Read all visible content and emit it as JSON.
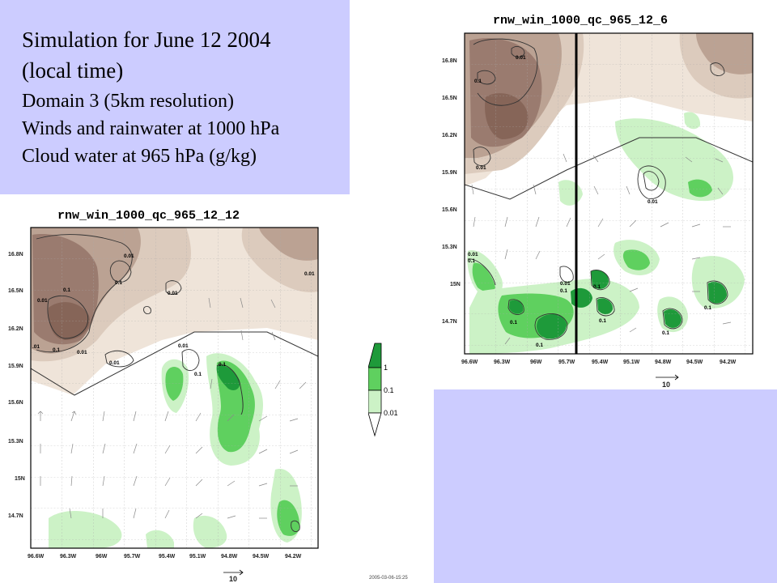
{
  "slide": {
    "title_line1": "Simulation for June 12 2004",
    "title_line2": "(local time)",
    "line3": "Domain 3 (5km resolution)",
    "line4": "Winds and rainwater at 1000 hPa",
    "line5": "Cloud water at 965 hPa (g/kg)",
    "timestamp": "2005-03-06-15:25"
  },
  "colors": {
    "panel_bg": "#ccccff",
    "brown_dark": "#9a7b6f",
    "brown_mid": "#bba293",
    "brown_light": "#dccbbd",
    "brown_faint": "#efe4d9",
    "green_light": "#ccf2c6",
    "green_mid": "#5fd05f",
    "green_dark": "#1e9a3a"
  },
  "colorbar": {
    "labels": [
      "1",
      "0.1",
      "0.01"
    ]
  },
  "left_map": {
    "title": "rnw_win_1000_qc_965_12_12",
    "lat_labels": [
      "16.8N",
      "16.5N",
      "16.2N",
      "15.9N",
      "15.6N",
      "15.3N",
      "15N",
      "14.7N"
    ],
    "lon_labels": [
      "96.6W",
      "96.3W",
      "96W",
      "95.7W",
      "95.4W",
      "95.1W",
      "94.8W",
      "94.5W",
      "94.2W"
    ],
    "vector_scale_label": "10",
    "contour_labels": [
      "0.01",
      "0.1",
      "0.01",
      "0.1",
      "0.01",
      "0.01",
      ".01",
      "0.1",
      "0.01",
      "0.01",
      "0.01",
      "0.1",
      "0.1"
    ]
  },
  "right_map": {
    "title": "rnw_win_1000_qc_965_12_6",
    "lat_labels": [
      "16.8N",
      "16.5N",
      "16.2N",
      "15.9N",
      "15.6N",
      "15.3N",
      "15N",
      "14.7N"
    ],
    "lon_labels": [
      "96.6W",
      "96.3W",
      "96W",
      "95.7W",
      "95.4W",
      "95.1W",
      "94.8W",
      "94.5W",
      "94.2W"
    ],
    "vector_scale_label": "10",
    "contour_labels": [
      "0.01",
      "0.1",
      "0.01",
      "0.01",
      "0.01",
      "0.1",
      "0.01",
      "0.1",
      "0.1",
      "0.1",
      "0.1",
      "0.1",
      "0.1",
      "0.1"
    ]
  }
}
